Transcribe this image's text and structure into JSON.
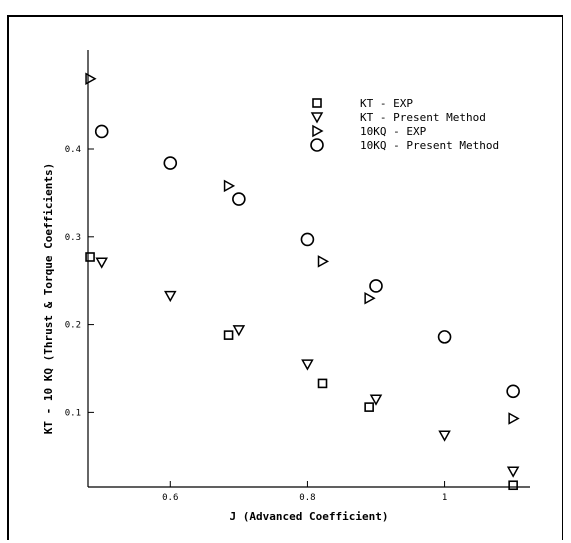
{
  "chart_data": {
    "type": "scatter",
    "title": "",
    "xlabel": "J (Advanced Coefficient)",
    "ylabel": "KT - 10 KQ (Thrust & Torque Coefficients)",
    "xlim": [
      0.48,
      1.11
    ],
    "ylim": [
      0.015,
      0.49
    ],
    "xticks": [
      0.6,
      0.8,
      1
    ],
    "xtick_labels": [
      "0.6",
      "0.8",
      "1"
    ],
    "yticks": [
      0.1,
      0.2,
      0.3,
      0.4
    ],
    "ytick_labels": [
      "0.1",
      "0.2",
      "0.3",
      "0.4"
    ],
    "grid": false,
    "legend_position": "top-right",
    "series": [
      {
        "name": "KT - EXP",
        "marker": "square",
        "x": [
          0.483,
          0.685,
          0.822,
          0.89,
          1.1
        ],
        "y": [
          0.277,
          0.188,
          0.133,
          0.106,
          0.017
        ]
      },
      {
        "name": "KT - Present Method",
        "marker": "triangle-down",
        "x": [
          0.5,
          0.6,
          0.7,
          0.8,
          0.9,
          1.0,
          1.1
        ],
        "y": [
          0.271,
          0.233,
          0.194,
          0.155,
          0.115,
          0.074,
          0.033
        ]
      },
      {
        "name": "10KQ - EXP",
        "marker": "triangle-right",
        "x": [
          0.483,
          0.685,
          0.822,
          0.89,
          1.1
        ],
        "y": [
          0.48,
          0.358,
          0.272,
          0.23,
          0.093
        ]
      },
      {
        "name": "10KQ - Present Method",
        "marker": "circle",
        "x": [
          0.5,
          0.6,
          0.7,
          0.8,
          0.9,
          1.0,
          1.1
        ],
        "y": [
          0.42,
          0.384,
          0.343,
          0.297,
          0.244,
          0.186,
          0.124
        ]
      }
    ]
  }
}
